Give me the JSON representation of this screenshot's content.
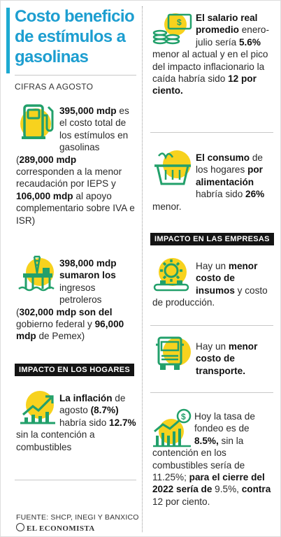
{
  "title": "Costo beneficio de estímulos a gasolinas",
  "subtitle": "CIFRAS A AGOSTO",
  "left": {
    "block1": {
      "b1": "395,000 mdp",
      "t1": " es el costo total de los estímulos en gasolinas (",
      "b2": "289,000 mdp",
      "t2": " corresponden a la menor recaudación por IEPS y ",
      "b3": "106,000 mdp",
      "t3": " al apoyo complementario sobre IVA e ISR)"
    },
    "block2": {
      "b1": "398,000 mdp sumaron los",
      "t1": " ingresos petroleros (",
      "b2": "302,000 mdp son del",
      "t2": " gobierno federal y ",
      "b3": "96,000 mdp",
      "t3": " de Pemex)"
    },
    "badge": "IMPACTO EN LOS HOGARES",
    "block3": {
      "b1": "La inflación",
      "t1": " de agosto ",
      "b2": "(8.7%)",
      "t2": " habría sido ",
      "b3": "12.7%",
      "t3": " sin la contención a combustibles"
    },
    "footer": "FUENTE: SHCP, INEGI Y BANXICO",
    "brand": "EL ECONOMISTA"
  },
  "right": {
    "block1": {
      "b1": "El salario real promedio",
      "t1": " enero-julio sería ",
      "b2": "5.6%",
      "t2": " menor al actual y en el pico del impacto inflacionario la caída habría sido ",
      "b3": "12 por ciento."
    },
    "block2": {
      "b1": "El consumo",
      "t1": " de los hogares ",
      "b2": "por alimentación",
      "t2": " habría sido ",
      "b3": "26%",
      "t3": " menor."
    },
    "badge": "IMPACTO EN LAS EMPRESAS",
    "block3": {
      "t1": "Hay un ",
      "b1": "menor costo de insumos",
      "t2": " y costo de producción."
    },
    "block4": {
      "t1": "Hay un ",
      "b1": "menor costo de transporte."
    },
    "block5": {
      "t1": "Hoy la tasa de fondeo es de ",
      "b1": "8.5%,",
      "t2": " sin la contención en los combustibles sería de 11.25%; ",
      "b2": "para el cierre del 2022 sería de",
      "t3": " 9.5%, ",
      "b3": "contra",
      "t4": " 12 por ciento."
    }
  },
  "colors": {
    "accent": "#1d9ed0",
    "yellow": "#f7d21e",
    "green": "#22a06b",
    "dark": "#141414"
  },
  "icons": [
    "gas-pump-icon",
    "oil-platform-icon",
    "inflation-chart-icon",
    "money-coins-icon",
    "food-basket-icon",
    "factory-gear-icon",
    "truck-icon",
    "rising-rate-chart-icon"
  ]
}
